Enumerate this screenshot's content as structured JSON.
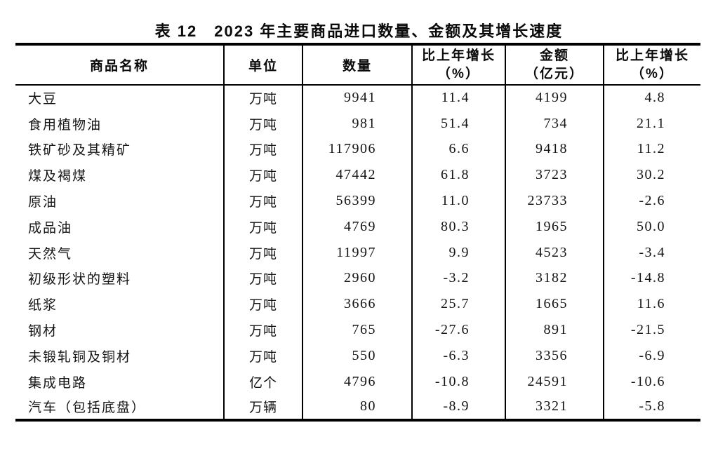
{
  "title": "表 12　2023 年主要商品进口数量、金额及其增长速度",
  "table": {
    "headers": {
      "name": "商品名称",
      "unit": "单位",
      "quantity": "数量",
      "quantity_growth_line1": "比上年增长",
      "quantity_growth_line2": "（%）",
      "amount_line1": "金额",
      "amount_line2": "（亿元）",
      "amount_growth_line1": "比上年增长",
      "amount_growth_line2": "（%）"
    },
    "rows": [
      {
        "name": "大豆",
        "unit": "万吨",
        "quantity": "9941",
        "quantity_growth": "11.4",
        "amount": "4199",
        "amount_growth": "4.8"
      },
      {
        "name": "食用植物油",
        "unit": "万吨",
        "quantity": "981",
        "quantity_growth": "51.4",
        "amount": "734",
        "amount_growth": "21.1"
      },
      {
        "name": "铁矿砂及其精矿",
        "unit": "万吨",
        "quantity": "117906",
        "quantity_growth": "6.6",
        "amount": "9418",
        "amount_growth": "11.2"
      },
      {
        "name": "煤及褐煤",
        "unit": "万吨",
        "quantity": "47442",
        "quantity_growth": "61.8",
        "amount": "3723",
        "amount_growth": "30.2"
      },
      {
        "name": "原油",
        "unit": "万吨",
        "quantity": "56399",
        "quantity_growth": "11.0",
        "amount": "23733",
        "amount_growth": "-2.6"
      },
      {
        "name": "成品油",
        "unit": "万吨",
        "quantity": "4769",
        "quantity_growth": "80.3",
        "amount": "1965",
        "amount_growth": "50.0"
      },
      {
        "name": "天然气",
        "unit": "万吨",
        "quantity": "11997",
        "quantity_growth": "9.9",
        "amount": "4523",
        "amount_growth": "-3.4"
      },
      {
        "name": "初级形状的塑料",
        "unit": "万吨",
        "quantity": "2960",
        "quantity_growth": "-3.2",
        "amount": "3182",
        "amount_growth": "-14.8"
      },
      {
        "name": "纸浆",
        "unit": "万吨",
        "quantity": "3666",
        "quantity_growth": "25.7",
        "amount": "1665",
        "amount_growth": "11.6"
      },
      {
        "name": "钢材",
        "unit": "万吨",
        "quantity": "765",
        "quantity_growth": "-27.6",
        "amount": "891",
        "amount_growth": "-21.5"
      },
      {
        "name": "未锻轧铜及铜材",
        "unit": "万吨",
        "quantity": "550",
        "quantity_growth": "-6.3",
        "amount": "3356",
        "amount_growth": "-6.9"
      },
      {
        "name": "集成电路",
        "unit": "亿个",
        "quantity": "4796",
        "quantity_growth": "-10.8",
        "amount": "24591",
        "amount_growth": "-10.6"
      },
      {
        "name": "汽车（包括底盘）",
        "unit": "万辆",
        "quantity": "80",
        "quantity_growth": "-8.9",
        "amount": "3321",
        "amount_growth": "-5.8"
      }
    ]
  }
}
